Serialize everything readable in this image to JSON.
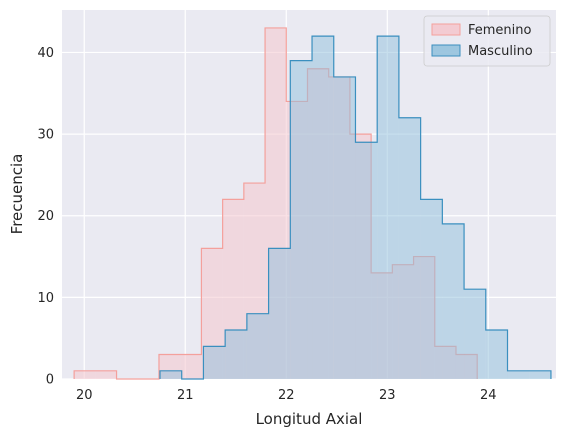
{
  "chart_data": {
    "type": "histogram",
    "xlabel": "Longitud Axial",
    "ylabel": "Frecuencia",
    "xlim": [
      19.78,
      24.67
    ],
    "ylim": [
      0,
      45.2
    ],
    "xticks": [
      20,
      21,
      22,
      23,
      24
    ],
    "yticks": [
      0,
      10,
      20,
      30,
      40
    ],
    "grid": true,
    "legend_position": "top-right",
    "background": "#eaeaf2",
    "series": [
      {
        "name": "Femenino",
        "edge_color": "#f4a09c",
        "fill_color": "#f4c6cd",
        "fill_opacity": 0.55,
        "bin_edges": [
          19.9,
          20.11,
          20.32,
          20.53,
          20.74,
          20.95,
          21.16,
          21.37,
          21.58,
          21.79,
          22.0,
          22.21,
          22.42,
          22.63,
          22.84,
          23.05,
          23.26,
          23.47,
          23.68,
          23.89
        ],
        "counts": [
          1,
          1,
          0,
          0,
          3,
          3,
          16,
          22,
          24,
          43,
          34,
          38,
          37,
          30,
          13,
          14,
          15,
          4,
          3
        ]
      },
      {
        "name": "Masculino",
        "edge_color": "#3a8fbf",
        "fill_color": "#8fbfdc",
        "fill_opacity": 0.5,
        "bin_edges": [
          20.75,
          20.965,
          21.18,
          21.395,
          21.61,
          21.825,
          22.04,
          22.255,
          22.47,
          22.685,
          22.9,
          23.115,
          23.33,
          23.545,
          23.76,
          23.975,
          24.19,
          24.405,
          24.62
        ],
        "counts": [
          1,
          0,
          4,
          6,
          8,
          16,
          39,
          42,
          37,
          29,
          42,
          32,
          22,
          19,
          11,
          6,
          1,
          1
        ]
      }
    ]
  }
}
